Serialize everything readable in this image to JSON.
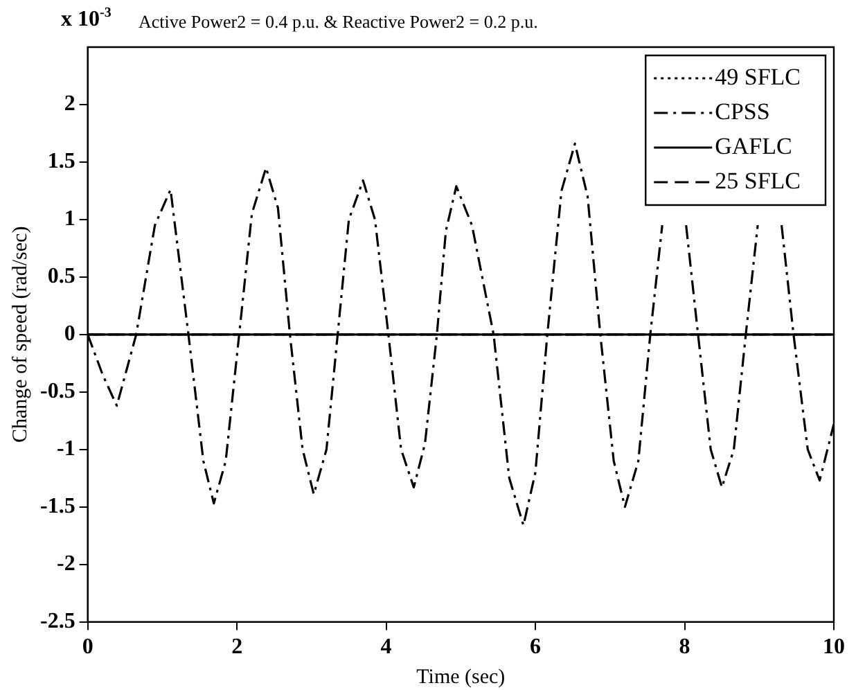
{
  "chart_data": {
    "type": "line",
    "title": "Active Power2 = 0.4 p.u. &  Reactive Power2 = 0.2 p.u.",
    "xlabel": "Time (sec)",
    "ylabel": "Change of speed (rad/sec)",
    "annotations": [
      "x 10$^{-3}$"
    ],
    "xlim": [
      0,
      10
    ],
    "xticks": [
      0,
      2,
      4,
      6,
      8,
      10
    ],
    "ylim": [
      -2.5,
      2.5
    ],
    "yticks": [
      -2.5,
      -2,
      -1.5,
      -1,
      -0.5,
      0,
      0.5,
      1,
      1.5,
      2
    ],
    "grid": false,
    "legend": "top right",
    "marker": "none",
    "series": [
      {
        "name": "49 SFLC",
        "color": "#000000",
        "line_style": "dotted",
        "x": [
          0,
          10
        ],
        "values": [
          0,
          0
        ]
      },
      {
        "name": "CPSS",
        "color": "#000000",
        "line_style": "dashdot",
        "x": [
          0,
          0.2,
          0.39,
          0.65,
          0.9,
          1.11,
          1.35,
          1.55,
          1.69,
          1.85,
          2.03,
          2.2,
          2.39,
          2.55,
          2.71,
          2.88,
          3.03,
          3.2,
          3.35,
          3.5,
          3.69,
          3.85,
          4.03,
          4.2,
          4.37,
          4.52,
          4.68,
          4.8,
          4.94,
          5.15,
          5.44,
          5.65,
          5.84,
          6.0,
          6.16,
          6.35,
          6.53,
          6.7,
          6.87,
          7.05,
          7.2,
          7.38,
          7.54,
          7.7,
          7.86,
          8.02,
          8.18,
          8.35,
          8.5,
          8.66,
          8.82,
          8.98,
          9.14,
          9.3,
          9.46,
          9.65,
          9.81,
          10
        ],
        "values": [
          0,
          -0.35,
          -0.62,
          0,
          0.95,
          1.26,
          0,
          -1.1,
          -1.47,
          -1.1,
          0,
          1.05,
          1.45,
          1.1,
          0,
          -1.0,
          -1.39,
          -1.0,
          0,
          1.0,
          1.34,
          1.0,
          0,
          -1.0,
          -1.33,
          -0.95,
          0,
          0.9,
          1.29,
          0.95,
          0,
          -1.25,
          -1.66,
          -1.2,
          0,
          1.25,
          1.66,
          1.2,
          0,
          -1.1,
          -1.5,
          -1.1,
          0,
          0.95,
          null,
          0.95,
          0,
          -1.0,
          -1.33,
          -1.0,
          0,
          0.95,
          null,
          0.95,
          0,
          -1.0,
          -1.27,
          -0.78
        ]
      },
      {
        "name": "GAFLC",
        "color": "#000000",
        "line_style": "solid",
        "x": [
          0,
          10
        ],
        "values": [
          0,
          0
        ]
      },
      {
        "name": "25 SFLC",
        "color": "#000000",
        "line_style": "dashed",
        "x": [
          0,
          10
        ],
        "values": [
          0,
          0
        ]
      }
    ]
  }
}
